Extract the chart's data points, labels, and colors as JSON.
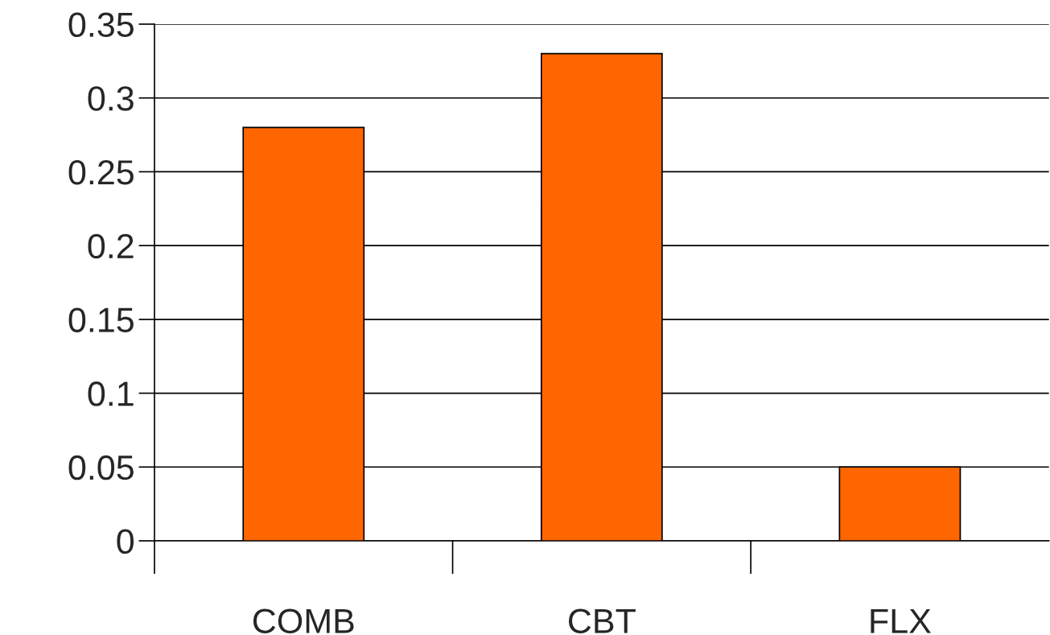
{
  "chart_data": {
    "type": "bar",
    "categories": [
      "COMB",
      "CBT",
      "FLX"
    ],
    "values": [
      0.28,
      0.33,
      0.05
    ],
    "color": "#ff6600",
    "ylim": [
      0,
      0.35
    ],
    "yticks": [
      0,
      {
        "value": 0.05,
        "label": "0.05"
      },
      {
        "value": 0.1,
        "label": "0.1"
      },
      {
        "value": 0.15,
        "label": "0.15"
      },
      {
        "value": 0.2,
        "label": "0.2"
      },
      {
        "value": 0.25,
        "label": "0.25"
      },
      {
        "value": 0.3,
        "label": "0.3"
      },
      {
        "value": 0.35,
        "label": "0.35"
      }
    ],
    "grid": "y"
  }
}
